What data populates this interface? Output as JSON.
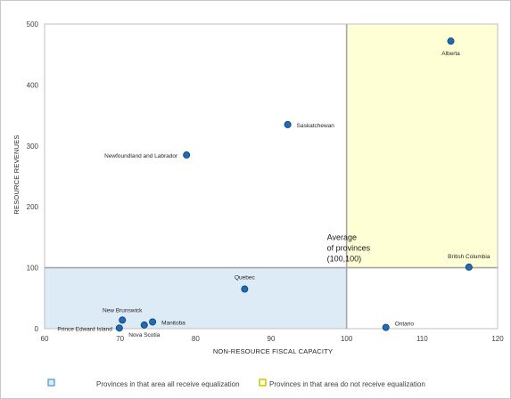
{
  "chart_data": {
    "type": "scatter",
    "xlabel": "NON-RESOURCE FISCAL CAPACITY",
    "ylabel": "RESOURCE REVENUES",
    "xlim": [
      60,
      120
    ],
    "ylim": [
      0,
      500
    ],
    "xticks": [
      "60",
      "70",
      "80",
      "90",
      "100",
      "110",
      "120"
    ],
    "yticks": [
      "0",
      "100",
      "200",
      "300",
      "400",
      "500"
    ],
    "grid": false,
    "colors": {
      "point": "#1f6cb4",
      "point_edge": "#0f3f73",
      "equalization_region": "#ddebf7",
      "non_equalization_region": "#ffffd6",
      "average_line": "#a6a6a6"
    },
    "points": [
      {
        "name": "Alberta",
        "x": 113.8,
        "y": 472
      },
      {
        "name": "Saskatchewan",
        "x": 92.2,
        "y": 335
      },
      {
        "name": "Newfoundland and Labrador",
        "x": 78.8,
        "y": 285
      },
      {
        "name": "British Columbia",
        "x": 116.2,
        "y": 101
      },
      {
        "name": "Quebec",
        "x": 86.5,
        "y": 65
      },
      {
        "name": "New Brunswick",
        "x": 70.3,
        "y": 14
      },
      {
        "name": "Manitoba",
        "x": 74.3,
        "y": 11
      },
      {
        "name": "Nova Scotia",
        "x": 73.2,
        "y": 6
      },
      {
        "name": "Prince Edward Island",
        "x": 69.9,
        "y": 1
      },
      {
        "name": "Ontario",
        "x": 105.2,
        "y": 2
      }
    ],
    "average": {
      "x": 100,
      "y": 100
    },
    "annotation": [
      "Average",
      "of provinces",
      "(100,100)"
    ],
    "legend": [
      {
        "label": "Provinces in that area all receive equalization",
        "color": "#ddebf7",
        "edge": "#5ba3d9"
      },
      {
        "label": "Provinces in that area do not receive equalization",
        "color": "#ffffd6",
        "edge": "#c8c200"
      }
    ]
  }
}
